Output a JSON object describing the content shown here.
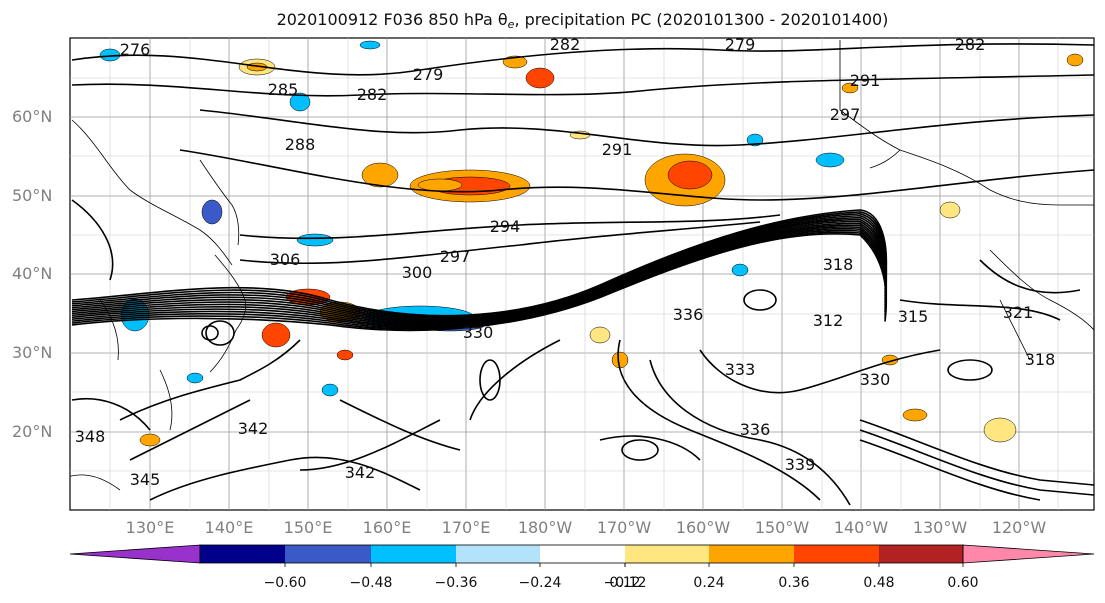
{
  "title": {
    "main": "2020100912 F036 850 hPa θ",
    "sub": "e",
    "rest": ", precipitation PC (2020101300 - 2020101400)"
  },
  "lat_labels": [
    "60°N",
    "50°N",
    "40°N",
    "30°N",
    "20°N"
  ],
  "lon_labels": [
    "130°E",
    "140°E",
    "150°E",
    "160°E",
    "170°E",
    "180°W",
    "170°W",
    "160°W",
    "150°W",
    "140°W",
    "130°W",
    "120°W"
  ],
  "contour_labels": [
    "276",
    "282",
    "279",
    "282",
    "279",
    "285",
    "282",
    "291",
    "288",
    "291",
    "297",
    "294",
    "297",
    "300",
    "306",
    "330",
    "318",
    "315",
    "312",
    "318",
    "321",
    "330",
    "336",
    "333",
    "336",
    "339",
    "342",
    "345",
    "342",
    "348"
  ],
  "colorbar": {
    "ticks": [
      "−0.60",
      "−0.48",
      "−0.36",
      "−0.24",
      "−0.12",
      "0.12",
      "0.24",
      "0.36",
      "0.48",
      "0.60"
    ],
    "colors": [
      "#9932cc",
      "#00008b",
      "#3a5bc7",
      "#00bfff",
      "#b3e2fb",
      "#ffffff",
      "#ffe680",
      "#ffa500",
      "#ff4500",
      "#b22222",
      "#ff88aa"
    ]
  }
}
